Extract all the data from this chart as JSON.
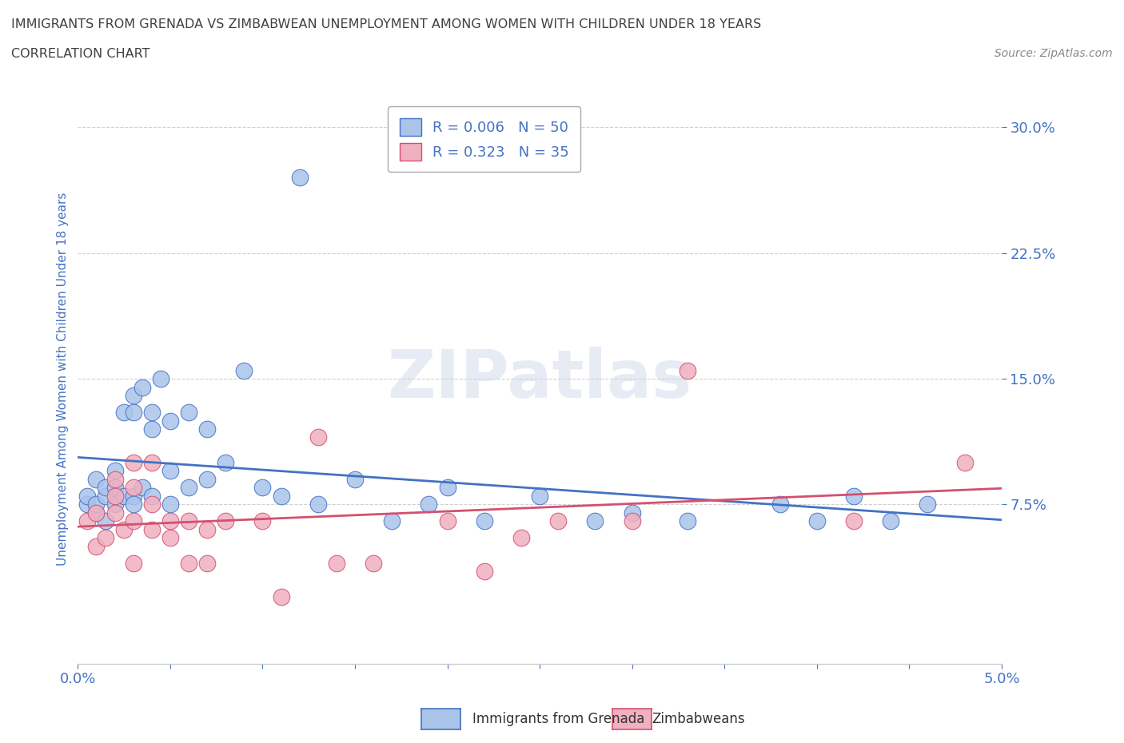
{
  "title_line1": "IMMIGRANTS FROM GRENADA VS ZIMBABWEAN UNEMPLOYMENT AMONG WOMEN WITH CHILDREN UNDER 18 YEARS",
  "title_line2": "CORRELATION CHART",
  "source_text": "Source: ZipAtlas.com",
  "ylabel": "Unemployment Among Women with Children Under 18 years",
  "xlim": [
    0.0,
    0.05
  ],
  "ylim": [
    -0.02,
    0.32
  ],
  "yticks": [
    0.075,
    0.15,
    0.225,
    0.3
  ],
  "ytick_labels": [
    "7.5%",
    "15.0%",
    "22.5%",
    "30.0%"
  ],
  "xtick_vals": [
    0.0,
    0.005,
    0.01,
    0.015,
    0.02,
    0.025,
    0.03,
    0.035,
    0.04,
    0.045,
    0.05
  ],
  "xtick_labels": [
    "0.0%",
    "",
    "",
    "",
    "",
    "",
    "",
    "",
    "",
    "",
    "5.0%"
  ],
  "legend_entry_1": "R = 0.006   N = 50",
  "legend_entry_2": "R = 0.323   N = 35",
  "watermark": "ZIPatlas",
  "grenada_color": "#aac4ea",
  "zimbabwe_color": "#f0b0c0",
  "trend_grenada_color": "#4472c4",
  "trend_zimbabwe_color": "#d45070",
  "background_color": "#ffffff",
  "grid_color": "#d0d0d0",
  "title_color": "#404040",
  "axis_label_color": "#4472c4",
  "tick_color": "#4472c4",
  "legend_box_color": "#cccccc",
  "grenada_x": [
    0.0005,
    0.0005,
    0.001,
    0.001,
    0.001,
    0.0015,
    0.0015,
    0.0015,
    0.002,
    0.002,
    0.002,
    0.0025,
    0.0025,
    0.003,
    0.003,
    0.003,
    0.003,
    0.0035,
    0.0035,
    0.004,
    0.004,
    0.004,
    0.0045,
    0.005,
    0.005,
    0.005,
    0.006,
    0.006,
    0.007,
    0.007,
    0.008,
    0.009,
    0.01,
    0.011,
    0.012,
    0.013,
    0.015,
    0.017,
    0.019,
    0.02,
    0.022,
    0.025,
    0.028,
    0.03,
    0.033,
    0.038,
    0.04,
    0.042,
    0.044,
    0.046
  ],
  "grenada_y": [
    0.075,
    0.08,
    0.07,
    0.075,
    0.09,
    0.08,
    0.085,
    0.065,
    0.095,
    0.085,
    0.075,
    0.13,
    0.08,
    0.14,
    0.13,
    0.08,
    0.075,
    0.145,
    0.085,
    0.13,
    0.12,
    0.08,
    0.15,
    0.125,
    0.095,
    0.075,
    0.13,
    0.085,
    0.12,
    0.09,
    0.1,
    0.155,
    0.085,
    0.08,
    0.27,
    0.075,
    0.09,
    0.065,
    0.075,
    0.085,
    0.065,
    0.08,
    0.065,
    0.07,
    0.065,
    0.075,
    0.065,
    0.08,
    0.065,
    0.075
  ],
  "zimbabwe_x": [
    0.0005,
    0.001,
    0.001,
    0.0015,
    0.002,
    0.002,
    0.002,
    0.0025,
    0.003,
    0.003,
    0.003,
    0.003,
    0.004,
    0.004,
    0.004,
    0.005,
    0.005,
    0.006,
    0.006,
    0.007,
    0.007,
    0.008,
    0.01,
    0.011,
    0.013,
    0.014,
    0.016,
    0.02,
    0.022,
    0.024,
    0.026,
    0.03,
    0.033,
    0.042,
    0.048
  ],
  "zimbabwe_y": [
    0.065,
    0.07,
    0.05,
    0.055,
    0.09,
    0.08,
    0.07,
    0.06,
    0.1,
    0.085,
    0.065,
    0.04,
    0.1,
    0.075,
    0.06,
    0.065,
    0.055,
    0.065,
    0.04,
    0.06,
    0.04,
    0.065,
    0.065,
    0.02,
    0.115,
    0.04,
    0.04,
    0.065,
    0.035,
    0.055,
    0.065,
    0.065,
    0.155,
    0.065,
    0.1
  ]
}
